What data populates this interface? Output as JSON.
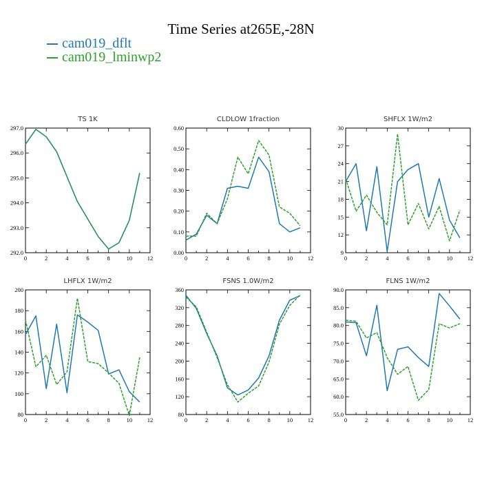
{
  "title": "Time Series at265E,-28N",
  "legend": [
    {
      "name": "cam019_dflt",
      "color": "#1f77b4"
    },
    {
      "name": "cam019_lminwp2",
      "color": "#2ca02c"
    }
  ],
  "chart_data": [
    {
      "type": "line",
      "title": "TS   1K",
      "xlim": [
        0,
        12
      ],
      "ylim": [
        292,
        297
      ],
      "xticks": [
        0,
        2,
        4,
        6,
        8,
        10,
        12
      ],
      "yticks": [
        292,
        293,
        294,
        295,
        296,
        297
      ],
      "ytick_labels": [
        "292.0",
        "293.0",
        "294.0",
        "295.0",
        "296.0",
        "297.0"
      ],
      "x": [
        0,
        1,
        2,
        3,
        4,
        5,
        6,
        7,
        8,
        9,
        10,
        11
      ],
      "series": [
        {
          "name": "cam019_dflt",
          "values": [
            296.35,
            296.95,
            296.65,
            296.05,
            295.05,
            294.05,
            293.35,
            292.65,
            292.15,
            292.4,
            293.3,
            295.2
          ]
        },
        {
          "name": "cam019_lminwp2",
          "values": [
            296.35,
            296.95,
            296.65,
            296.05,
            295.05,
            294.05,
            293.35,
            292.65,
            292.15,
            292.4,
            293.3,
            295.2
          ]
        }
      ]
    },
    {
      "type": "line",
      "title": "CLDLOW   1fraction",
      "xlim": [
        0,
        12
      ],
      "ylim": [
        0,
        0.6
      ],
      "xticks": [
        0,
        2,
        4,
        6,
        8,
        10,
        12
      ],
      "yticks": [
        0,
        0.1,
        0.2,
        0.3,
        0.4,
        0.5,
        0.6
      ],
      "ytick_labels": [
        "0.00",
        "0.10",
        "0.20",
        "0.30",
        "0.40",
        "0.50",
        "0.60"
      ],
      "x": [
        0,
        1,
        2,
        3,
        4,
        5,
        6,
        7,
        8,
        9,
        10,
        11
      ],
      "series": [
        {
          "name": "cam019_dflt",
          "values": [
            0.06,
            0.09,
            0.18,
            0.14,
            0.31,
            0.32,
            0.31,
            0.46,
            0.39,
            0.14,
            0.1,
            0.12
          ]
        },
        {
          "name": "cam019_lminwp2",
          "values": [
            0.08,
            0.08,
            0.19,
            0.14,
            0.26,
            0.46,
            0.38,
            0.54,
            0.47,
            0.22,
            0.19,
            0.13
          ]
        }
      ]
    },
    {
      "type": "line",
      "title": "SHFLX   1W/m2",
      "xlim": [
        0,
        12
      ],
      "ylim": [
        9,
        30
      ],
      "xticks": [
        0,
        2,
        4,
        6,
        8,
        10,
        12
      ],
      "yticks": [
        9,
        12,
        15,
        18,
        21,
        24,
        27,
        30
      ],
      "ytick_labels": [
        "9",
        "12",
        "15",
        "18",
        "21",
        "24",
        "27",
        "30"
      ],
      "x": [
        0,
        1,
        2,
        3,
        4,
        5,
        6,
        7,
        8,
        9,
        10,
        11
      ],
      "series": [
        {
          "name": "cam019_dflt",
          "values": [
            21.0,
            24.0,
            12.7,
            23.5,
            9.2,
            21.0,
            23.0,
            24.0,
            15.0,
            21.5,
            14.5,
            11.5
          ]
        },
        {
          "name": "cam019_lminwp2",
          "values": [
            21.5,
            16.0,
            18.7,
            15.8,
            13.7,
            29.0,
            13.7,
            17.3,
            13.0,
            16.8,
            11.0,
            16.2
          ]
        }
      ]
    },
    {
      "type": "line",
      "title": "LHFLX   1W/m2",
      "xlim": [
        0,
        12
      ],
      "ylim": [
        80,
        200
      ],
      "xticks": [
        0,
        2,
        4,
        6,
        8,
        10,
        12
      ],
      "yticks": [
        80,
        100,
        120,
        140,
        160,
        180,
        200
      ],
      "ytick_labels": [
        "80",
        "100",
        "120",
        "140",
        "160",
        "180",
        "200"
      ],
      "x": [
        0,
        1,
        2,
        3,
        4,
        5,
        6,
        7,
        8,
        9,
        10,
        11
      ],
      "series": [
        {
          "name": "cam019_dflt",
          "values": [
            157,
            175,
            105,
            167,
            101,
            176,
            169,
            161,
            119,
            123,
            102,
            92
          ]
        },
        {
          "name": "cam019_lminwp2",
          "values": [
            171,
            126,
            137,
            109,
            121,
            192,
            131,
            129,
            120,
            110,
            79,
            135
          ]
        }
      ]
    },
    {
      "type": "line",
      "title": "FSNS   1.0W/m2",
      "xlim": [
        0,
        12
      ],
      "ylim": [
        80,
        360
      ],
      "xticks": [
        0,
        2,
        4,
        6,
        8,
        10,
        12
      ],
      "yticks": [
        80,
        120,
        160,
        200,
        240,
        280,
        320,
        360
      ],
      "ytick_labels": [
        "80",
        "120",
        "160",
        "200",
        "240",
        "280",
        "320",
        "360"
      ],
      "x": [
        0,
        1,
        2,
        3,
        4,
        5,
        6,
        7,
        8,
        9,
        10,
        11
      ],
      "series": [
        {
          "name": "cam019_dflt",
          "values": [
            348,
            318,
            262,
            212,
            140,
            124,
            135,
            162,
            212,
            292,
            337,
            347
          ]
        },
        {
          "name": "cam019_lminwp2",
          "values": [
            344,
            322,
            265,
            208,
            147,
            108,
            128,
            144,
            198,
            283,
            325,
            349
          ]
        }
      ]
    },
    {
      "type": "line",
      "title": "FLNS   1W/m2",
      "xlim": [
        0,
        12
      ],
      "ylim": [
        55,
        90
      ],
      "xticks": [
        0,
        2,
        4,
        6,
        8,
        10,
        12
      ],
      "yticks": [
        55,
        60,
        65,
        70,
        75,
        80,
        85,
        90
      ],
      "ytick_labels": [
        "55.0",
        "60.0",
        "65.0",
        "70.0",
        "75.0",
        "80.0",
        "85.0",
        "90.0"
      ],
      "x": [
        0,
        1,
        2,
        3,
        4,
        5,
        6,
        7,
        8,
        9,
        10,
        11
      ],
      "series": [
        {
          "name": "cam019_dflt",
          "values": [
            81.0,
            80.8,
            71.5,
            85.7,
            61.7,
            73.3,
            74.0,
            71.0,
            68.5,
            89.0,
            85.5,
            81.8
          ]
        },
        {
          "name": "cam019_lminwp2",
          "values": [
            81.5,
            81.2,
            76.5,
            78.0,
            71.0,
            66.3,
            68.5,
            59.0,
            62.0,
            80.5,
            79.3,
            80.5
          ]
        }
      ]
    }
  ]
}
